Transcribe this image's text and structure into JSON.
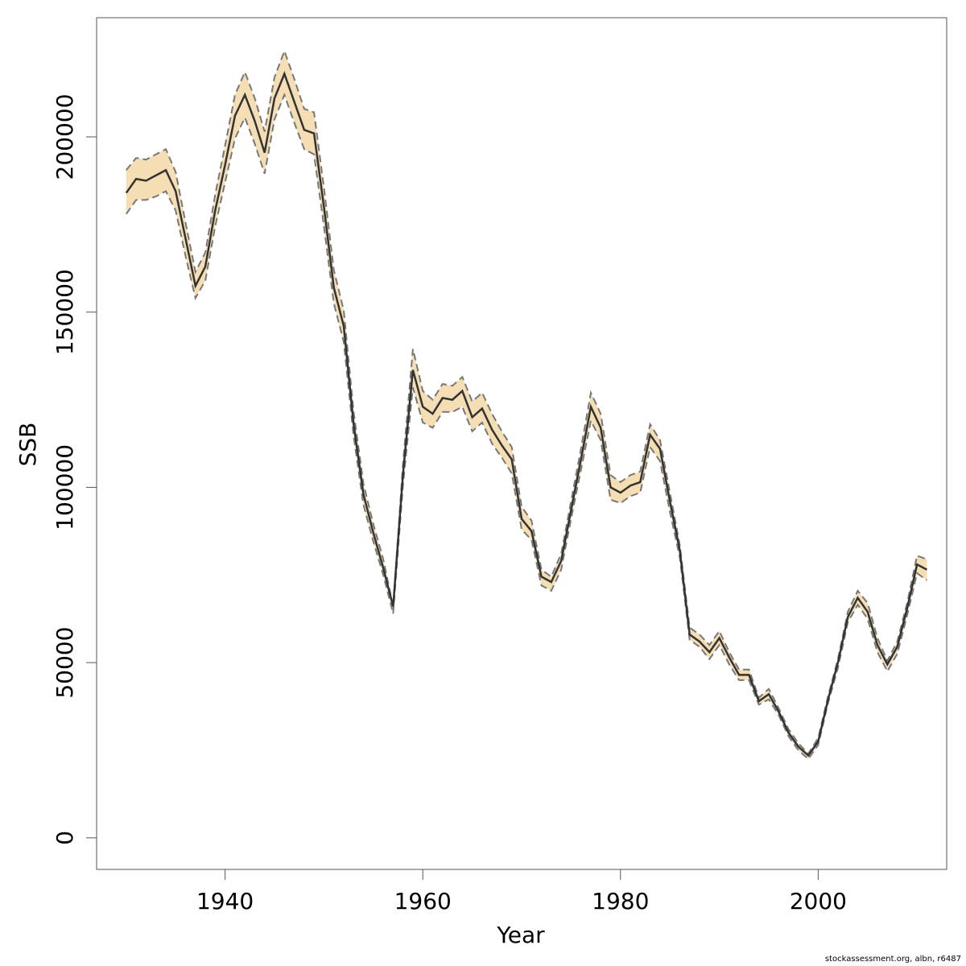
{
  "chart_data": {
    "type": "area",
    "xlabel": "Year",
    "ylabel": "SSB",
    "xlim": [
      1927,
      2013
    ],
    "ylim": [
      -9000,
      234000
    ],
    "x_ticks": [
      1940,
      1960,
      1980,
      2000
    ],
    "y_ticks": [
      0,
      50000,
      100000,
      150000,
      200000
    ],
    "grid": false,
    "colors": {
      "band": "#f5deb3",
      "line": "#333333",
      "bound": "#777777",
      "box": "#555555"
    },
    "x": [
      1930,
      1931,
      1932,
      1933,
      1934,
      1935,
      1936,
      1937,
      1938,
      1939,
      1940,
      1941,
      1942,
      1943,
      1944,
      1945,
      1946,
      1947,
      1948,
      1949,
      1950,
      1951,
      1952,
      1953,
      1954,
      1955,
      1956,
      1957,
      1958,
      1959,
      1960,
      1961,
      1962,
      1963,
      1964,
      1965,
      1966,
      1967,
      1968,
      1969,
      1970,
      1971,
      1972,
      1973,
      1974,
      1975,
      1976,
      1977,
      1978,
      1979,
      1980,
      1981,
      1982,
      1983,
      1984,
      1985,
      1986,
      1987,
      1988,
      1989,
      1990,
      1991,
      1992,
      1993,
      1994,
      1995,
      1996,
      1997,
      1998,
      1999,
      2000,
      2001,
      2002,
      2003,
      2004,
      2005,
      2006,
      2007,
      2008,
      2009,
      2010,
      2011
    ],
    "series": [
      {
        "values": [
          184000,
          188000,
          187500,
          189000,
          190500,
          184500,
          171000,
          157500,
          163000,
          179000,
          192000,
          206000,
          212000,
          204500,
          195500,
          211000,
          218000,
          210000,
          202000,
          201000,
          180000,
          157000,
          146000,
          118000,
          98000,
          87000,
          77000,
          66000,
          104000,
          133500,
          123000,
          121000,
          125500,
          125000,
          127500,
          120000,
          122500,
          116500,
          112000,
          108000,
          91000,
          87500,
          74500,
          73000,
          79000,
          93500,
          108000,
          123000,
          117000,
          100000,
          98500,
          100500,
          101500,
          115000,
          111000,
          96000,
          82000,
          58000,
          56000,
          53000,
          57000,
          51500,
          46500,
          46500,
          39000,
          41000,
          36000,
          30000,
          26000,
          23500,
          27500,
          39500,
          50000,
          63000,
          68500,
          64500,
          55000,
          49500,
          54500,
          65500,
          78000,
          76500
        ]
      },
      {
        "values": [
          190500,
          194000,
          193500,
          195000,
          196500,
          190000,
          175500,
          161500,
          167000,
          183500,
          197500,
          212000,
          218500,
          211000,
          201500,
          217000,
          224500,
          216500,
          208000,
          207000,
          185500,
          162000,
          150500,
          121500,
          101000,
          89500,
          79500,
          66000,
          107000,
          139500,
          127500,
          125000,
          129500,
          129000,
          131500,
          124500,
          127000,
          121000,
          116000,
          111500,
          94500,
          90500,
          76500,
          74500,
          81000,
          96000,
          111000,
          127000,
          121000,
          103500,
          101500,
          103500,
          104500,
          118000,
          113500,
          98500,
          83500,
          60000,
          58000,
          55000,
          59000,
          53000,
          48000,
          48000,
          40000,
          42500,
          37000,
          31000,
          27000,
          24000,
          28500,
          40500,
          51000,
          64500,
          70500,
          67000,
          57000,
          50500,
          56000,
          67000,
          80500,
          79500
        ]
      },
      {
        "values": [
          178000,
          182000,
          182000,
          183000,
          184500,
          179000,
          166000,
          154000,
          159000,
          174500,
          187000,
          199500,
          205500,
          198000,
          189500,
          205000,
          212000,
          204000,
          196500,
          195000,
          174500,
          152500,
          141500,
          114500,
          95000,
          84500,
          75000,
          64000,
          101000,
          128500,
          118500,
          117000,
          121500,
          121500,
          123000,
          116000,
          118500,
          112500,
          108500,
          104000,
          88000,
          85000,
          72000,
          70500,
          76500,
          91000,
          105000,
          119000,
          113500,
          96500,
          95500,
          97500,
          98500,
          111500,
          107500,
          93000,
          80000,
          56500,
          54500,
          51000,
          55000,
          49500,
          45000,
          45000,
          38000,
          39500,
          35000,
          29000,
          25000,
          22500,
          26500,
          38500,
          48500,
          61500,
          66500,
          62500,
          53000,
          47500,
          52500,
          63500,
          75500,
          73500
        ]
      }
    ]
  },
  "footer": "stockassessment.org, albn, r6487"
}
